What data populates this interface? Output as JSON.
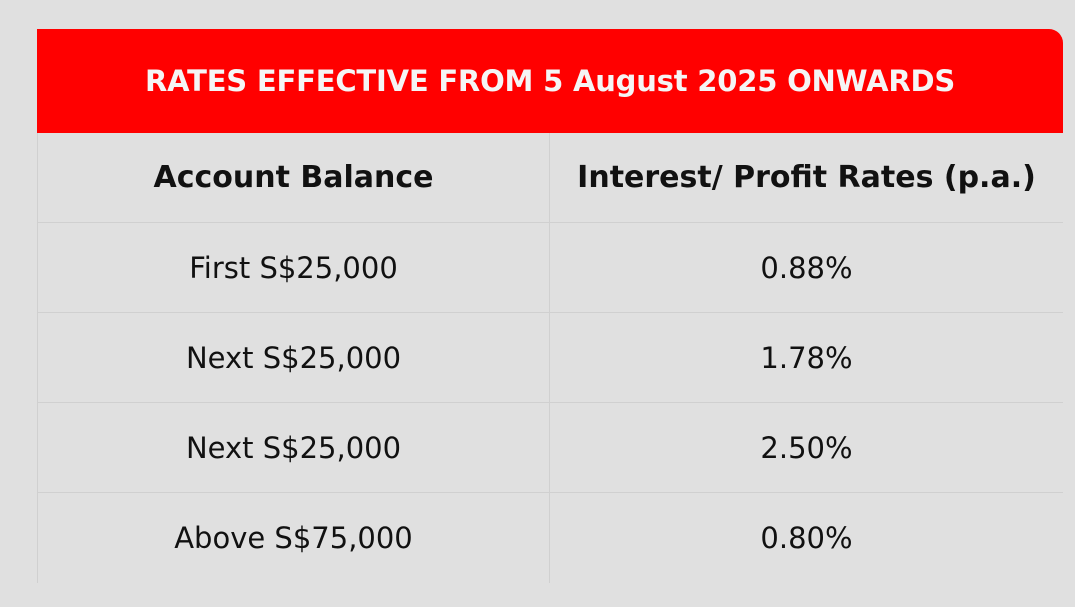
{
  "banner": {
    "title": "RATES EFFECTIVE FROM 5 August 2025 ONWARDS"
  },
  "table": {
    "columns": [
      "Account Balance",
      "Interest/ Profit Rates (p.a.)"
    ],
    "rows": [
      {
        "balance": "First S$25,000",
        "rate": "0.88%"
      },
      {
        "balance": "Next S$25,000",
        "rate": "1.78%"
      },
      {
        "balance": "Next S$25,000",
        "rate": "2.50%"
      },
      {
        "balance": "Above S$75,000",
        "rate": "0.80%"
      }
    ]
  },
  "colors": {
    "banner_bg": "#ff0000",
    "banner_text": "#f5f5f5",
    "page_bg": "#e0e0e0",
    "text": "#111111"
  }
}
